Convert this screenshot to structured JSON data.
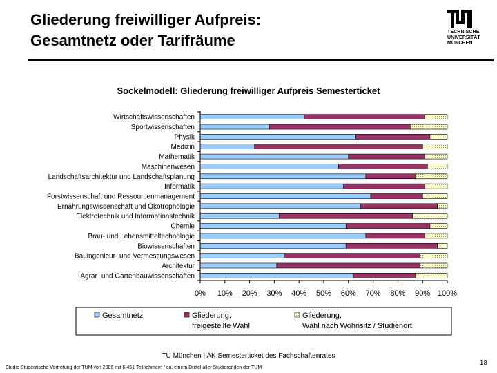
{
  "slide": {
    "title_line1": "Gliederung freiwilliger Aufpreis:",
    "title_line2": "Gesamtnetz oder Tarifräume",
    "logo_lines": [
      "TECHNISCHE",
      "UNIVERSITÄT",
      "MÜNCHEN"
    ],
    "footer": "TU München | AK Semesterticket des Fachschaftenrates",
    "page_number": "18",
    "footnote": "Studie Studentische Vertretung der TUM von 2006 mit 6.451 Teilnehmern / ca. einem Drittel aller Studierenden der TUM"
  },
  "chart_data": {
    "type": "bar",
    "orientation": "horizontal",
    "stacking": "percent",
    "title": "Sockelmodell: Gliederung freiwilliger Aufpreis Semesterticket",
    "xlabel": "",
    "ylabel": "",
    "xlim": [
      0,
      100
    ],
    "x_ticks": [
      "0%",
      "10%",
      "20%",
      "30%",
      "40%",
      "50%",
      "60%",
      "70%",
      "80%",
      "90%",
      "100%"
    ],
    "grid": false,
    "legend_position": "bottom",
    "categories": [
      "Wirtschaftswissenschaften",
      "Sportwissenschaften",
      "Physik",
      "Medizin",
      "Mathematik",
      "Maschinenwesen",
      "Landschaftsarchitektur und Landschaftsplanung",
      "Informatik",
      "Forstwissenschaft und Ressourcenmanagement",
      "Ernährungswissenschaft und Ökotrophologie",
      "Elektrotechnik und Informationstechnik",
      "Chemie",
      "Brau- und Lebensmitteltechnologie",
      "Biowissenschaften",
      "Bauingenieur- und Vermessungswesen",
      "Architektur",
      "Agrar- und Gartenbauwissenschaften"
    ],
    "series": [
      {
        "name": "Gesamtnetz",
        "color": "#99ccff",
        "values": [
          42,
          28,
          63,
          22,
          60,
          56,
          67,
          58,
          69,
          65,
          32,
          59,
          67,
          59,
          34,
          31,
          62
        ]
      },
      {
        "name": "Gliederung, freigestellte Wahl",
        "color": "#993366",
        "values": [
          49,
          57,
          30,
          68,
          31,
          36,
          20,
          33,
          21,
          31,
          54,
          34,
          24,
          37,
          55,
          58,
          25
        ]
      },
      {
        "name": "Gliederung, Wahl nach Wohnsitz / Studienort",
        "color": "#ffffcc",
        "values": [
          9,
          15,
          7,
          10,
          9,
          8,
          13,
          9,
          10,
          4,
          14,
          7,
          9,
          4,
          11,
          11,
          13
        ]
      }
    ]
  }
}
